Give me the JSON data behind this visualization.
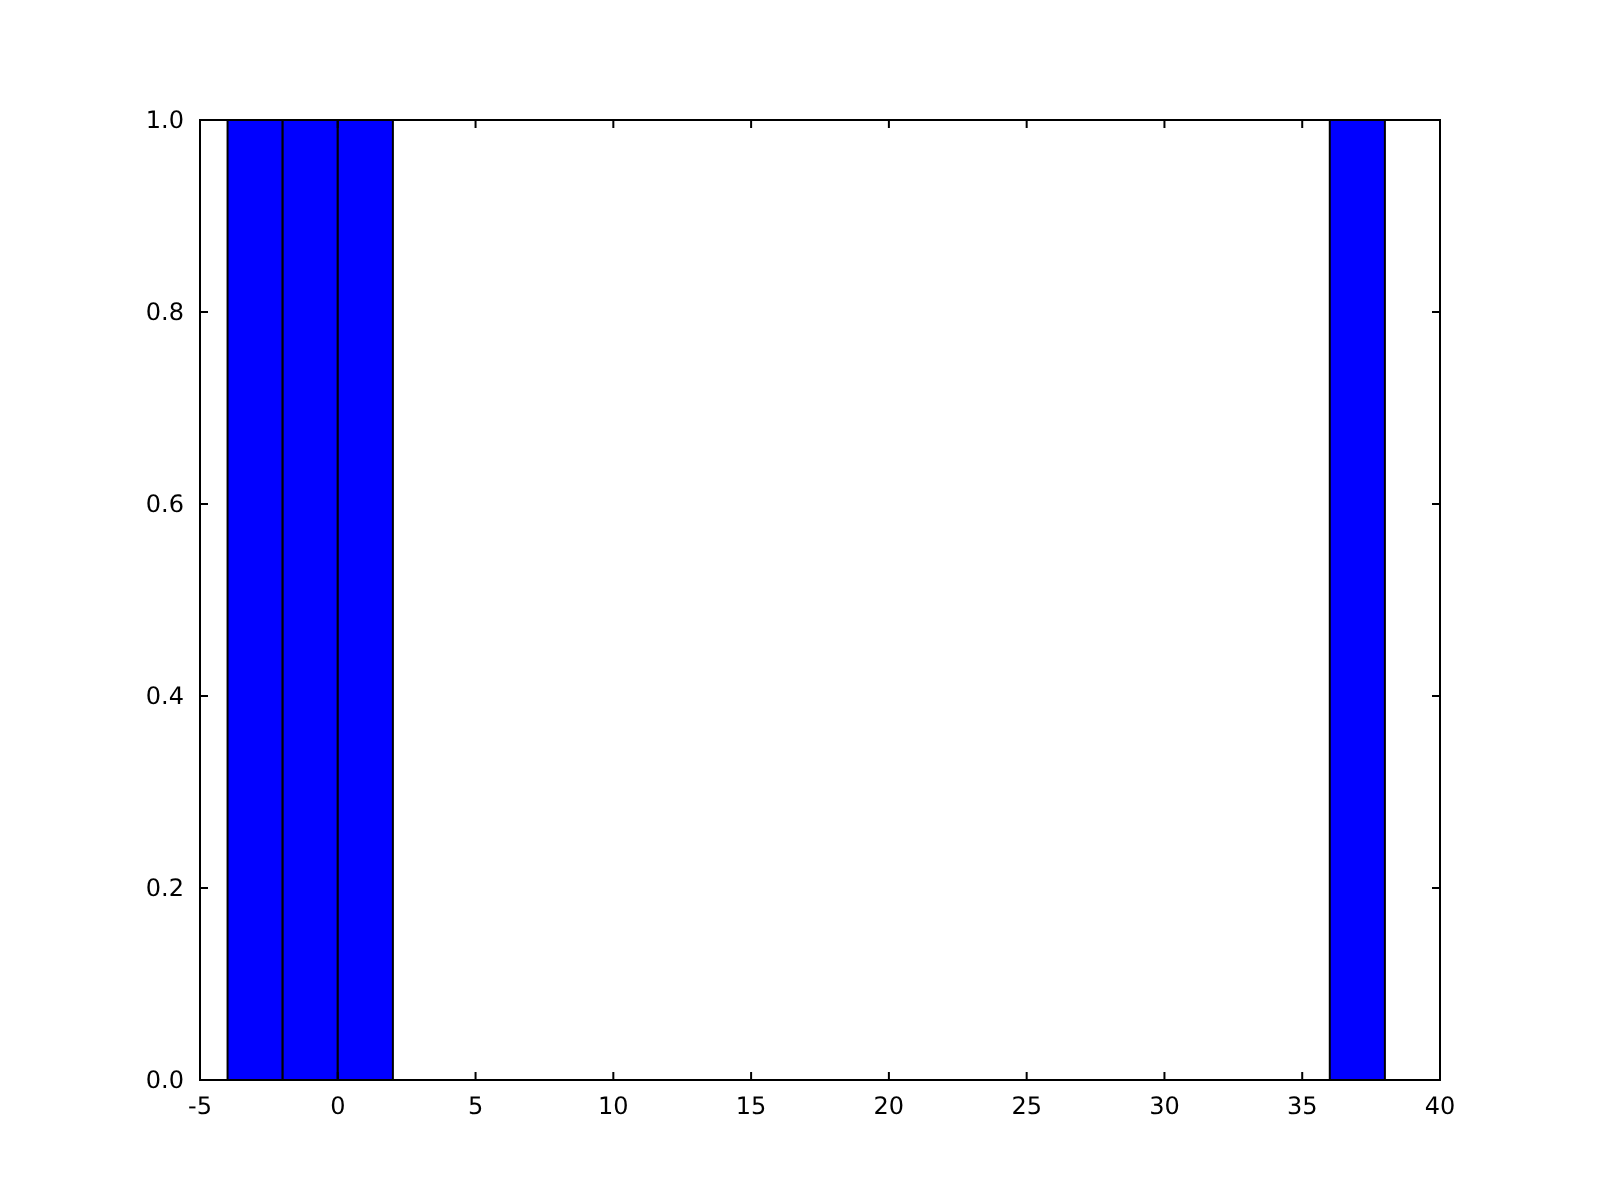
{
  "chart_data": {
    "type": "histogram",
    "bins": [
      -4,
      -2,
      0,
      2,
      4,
      6,
      8,
      10,
      12,
      14,
      16,
      18,
      20,
      22,
      24,
      26,
      28,
      30,
      32,
      34,
      36,
      38
    ],
    "values": [
      1,
      1,
      1,
      0,
      0,
      0,
      0,
      0,
      0,
      0,
      0,
      0,
      0,
      0,
      0,
      0,
      0,
      0,
      0,
      0,
      1
    ],
    "color": "#0000ff",
    "xlim": [
      -5,
      40
    ],
    "xticks": [
      -5,
      0,
      5,
      10,
      15,
      20,
      25,
      30,
      35,
      40
    ],
    "ylim": [
      0,
      1
    ],
    "yticks": [
      {
        "value": 0,
        "label": "0.0"
      },
      {
        "value": 0.2,
        "label": "0.2"
      },
      {
        "value": 0.4,
        "label": "0.4"
      },
      {
        "value": 0.6,
        "label": "0.6"
      },
      {
        "value": 0.8,
        "label": "0.8"
      },
      {
        "value": 1,
        "label": "1.0"
      }
    ],
    "grid": false
  }
}
